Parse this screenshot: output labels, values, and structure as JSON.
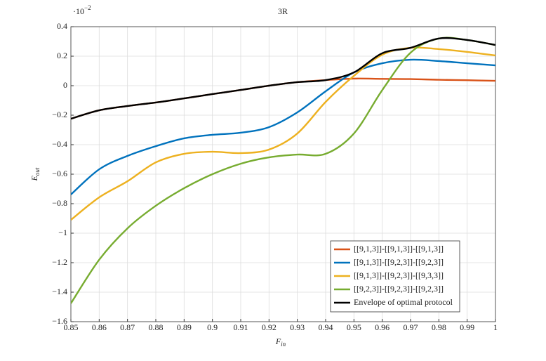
{
  "chart_data": {
    "type": "line",
    "title": "3R",
    "y_multiplier": "·10",
    "y_multiplier_exp": "−2",
    "x_label": "F",
    "x_label_sub": "in",
    "y_label": "E",
    "y_label_sub": "out",
    "x": [
      0.85,
      0.86,
      0.87,
      0.88,
      0.89,
      0.9,
      0.91,
      0.92,
      0.93,
      0.94,
      0.95,
      0.96,
      0.97,
      0.98,
      0.99,
      1
    ],
    "series": [
      {
        "name": "[[9,1,3]]-[[9,1,3]]-[[9,1,3]]",
        "color": "#d95319",
        "values": [
          -0.224,
          -0.167,
          -0.138,
          -0.114,
          -0.086,
          -0.057,
          -0.029,
          0,
          0.024,
          0.038,
          0.048,
          0.046,
          0.045,
          0.04,
          0.037,
          0.033
        ]
      },
      {
        "name": "[[9,1,3]]-[[9,2,3]]-[[9,2,3]]",
        "color": "#0072bd",
        "values": [
          -0.738,
          -0.567,
          -0.476,
          -0.41,
          -0.357,
          -0.333,
          -0.319,
          -0.281,
          -0.181,
          -0.038,
          0.09,
          0.152,
          0.176,
          0.167,
          0.152,
          0.138
        ]
      },
      {
        "name": "[[9,1,3]]-[[9,2,3]]-[[9,3,3]]",
        "color": "#edb120",
        "values": [
          -0.91,
          -0.757,
          -0.648,
          -0.52,
          -0.462,
          -0.448,
          -0.457,
          -0.433,
          -0.324,
          -0.11,
          0.067,
          0.21,
          0.257,
          0.248,
          0.229,
          0.205
        ]
      },
      {
        "name": "[[9,2,3]]-[[9,2,3]]-[[9,2,3]]",
        "color": "#77ac30",
        "values": [
          -1.476,
          -1.18,
          -0.967,
          -0.814,
          -0.695,
          -0.6,
          -0.529,
          -0.486,
          -0.467,
          -0.462,
          -0.324,
          -0.03,
          0.224,
          0.32,
          0.31,
          0.276
        ]
      },
      {
        "name": "Envelope of optimal protocol",
        "color": "#000000",
        "values": [
          -0.224,
          -0.167,
          -0.138,
          -0.114,
          -0.086,
          -0.057,
          -0.029,
          0,
          0.024,
          0.038,
          0.09,
          0.22,
          0.257,
          0.32,
          0.31,
          0.276
        ]
      }
    ],
    "xlim": [
      0.85,
      1
    ],
    "xticks": [
      0.85,
      0.86,
      0.87,
      0.88,
      0.89,
      0.9,
      0.91,
      0.92,
      0.93,
      0.94,
      0.95,
      0.96,
      0.97,
      0.98,
      0.99,
      1
    ],
    "ylim": [
      -1.6,
      0.4
    ],
    "yticks": [
      {
        "value": -1.6,
        "label": "−1.6"
      },
      {
        "value": -1.4,
        "label": "−1.4"
      },
      {
        "value": -1.2,
        "label": "−1.2"
      },
      {
        "value": -1,
        "label": "−1"
      },
      {
        "value": -0.8,
        "label": "−0.8"
      },
      {
        "value": -0.6,
        "label": "−0.6"
      },
      {
        "value": -0.4,
        "label": "−0.4"
      },
      {
        "value": -0.2,
        "label": "−0.2"
      },
      0,
      0.2,
      0.4
    ],
    "grid": true,
    "legend": "lower right"
  }
}
